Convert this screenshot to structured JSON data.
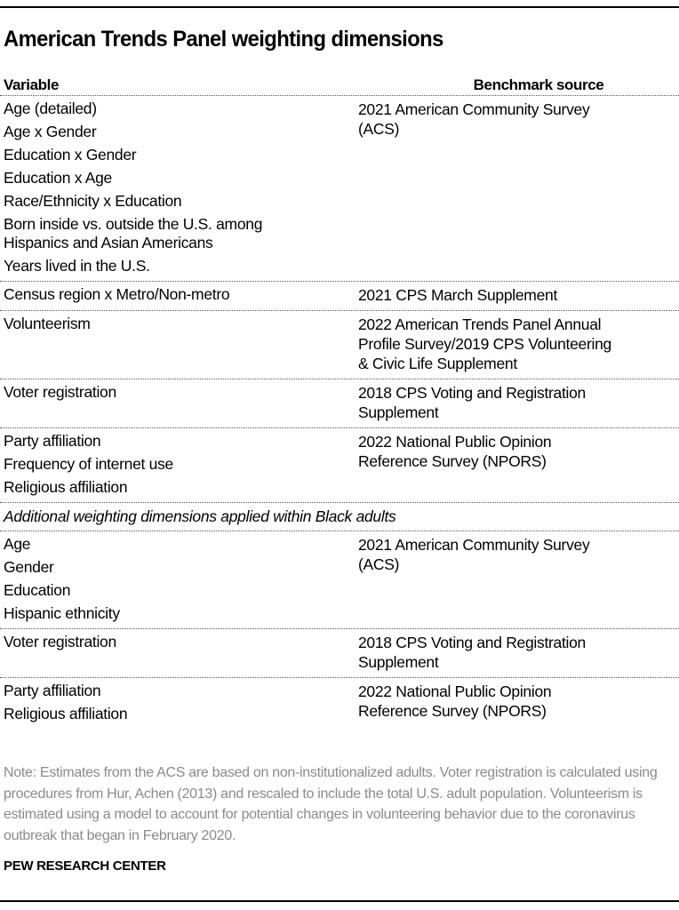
{
  "title": "American Trends Panel weighting dimensions",
  "columns": {
    "variable": "Variable",
    "benchmark": "Benchmark source"
  },
  "rows": [
    {
      "variables": [
        "Age (detailed)",
        "Age x Gender",
        "Education x Gender",
        "Education x Age",
        "Race/Ethnicity x Education",
        "Born inside vs. outside the U.S. among Hispanics and Asian Americans",
        "Years lived in the U.S."
      ],
      "benchmark": [
        "2021 American Community Survey",
        "(ACS)"
      ]
    },
    {
      "variables": [
        "Census region x Metro/Non-metro"
      ],
      "benchmark": [
        "2021 CPS March Supplement"
      ]
    },
    {
      "variables": [
        "Volunteerism"
      ],
      "benchmark": [
        "2022 American Trends Panel Annual",
        "Profile Survey/2019 CPS Volunteering",
        "& Civic Life Supplement"
      ]
    },
    {
      "variables": [
        "Voter registration"
      ],
      "benchmark": [
        "2018 CPS Voting and Registration",
        "Supplement"
      ]
    },
    {
      "variables": [
        "Party affiliation",
        "Frequency of internet use",
        "Religious affiliation"
      ],
      "benchmark": [
        "2022 National Public Opinion",
        "Reference Survey (NPORS)"
      ]
    }
  ],
  "subheading": "Additional weighting dimensions applied within Black adults",
  "rows2": [
    {
      "variables": [
        "Age",
        "Gender",
        "Education",
        "Hispanic ethnicity"
      ],
      "benchmark": [
        "2021 American Community Survey",
        "(ACS)"
      ]
    },
    {
      "variables": [
        "Voter registration"
      ],
      "benchmark": [
        "2018 CPS Voting and Registration",
        "Supplement"
      ]
    },
    {
      "variables": [
        "Party affiliation",
        "Religious affiliation"
      ],
      "benchmark": [
        "2022 National Public Opinion",
        "Reference Survey (NPORS)"
      ]
    }
  ],
  "note": "Note: Estimates from the ACS are based on non-institutionalized adults. Voter registration is calculated using procedures from Hur, Achen (2013) and rescaled to include the total U.S. adult population. Volunteerism is estimated using a model to account for potential changes in volunteering behavior due to the coronavirus outbreak that began in February 2020.",
  "source_brand": "PEW RESEARCH CENTER"
}
